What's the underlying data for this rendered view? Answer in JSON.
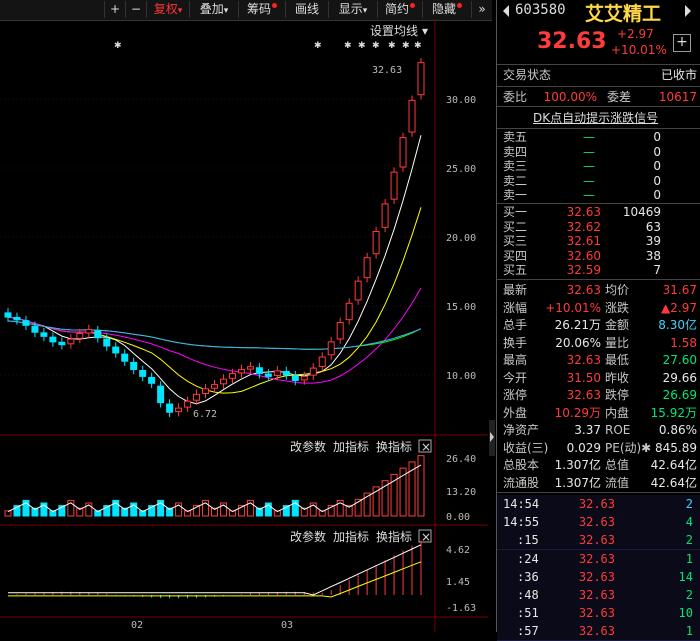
{
  "toolbar": {
    "plus": "+",
    "minus": "−",
    "fuquan": "复权",
    "diejia": "叠加",
    "chouma": "筹码",
    "huaxian": "画线",
    "xianshi": "显示",
    "jianyue": "简约",
    "yincang": "隐藏",
    "more": "»",
    "dropdown": "▾"
  },
  "chart": {
    "settings_label": "设置均线",
    "price_axis": [
      "30.00",
      "25.00",
      "20.00",
      "15.00",
      "10.00"
    ],
    "high_label": "32.63",
    "low_label": "6.72",
    "vol_axis": [
      "26.40",
      "13.20",
      "0.00"
    ],
    "macd_axis": [
      "4.62",
      "1.45",
      "-1.63"
    ],
    "date_labels": [
      "02",
      "03"
    ],
    "tab_params": "改参数",
    "tab_add": "加指标",
    "tab_switch": "换指标",
    "close_x": "×",
    "star_marks": "✱"
  },
  "stock": {
    "code": "603580",
    "name": "艾艾精工",
    "price": "32.63",
    "change": "+2.97",
    "change_pct": "+10.01%",
    "add_btn": "+"
  },
  "trade_status": {
    "label": "交易状态",
    "value": "已收市"
  },
  "weibi": {
    "label": "委比",
    "value": "100.00%",
    "label2": "委差",
    "value2": "10617"
  },
  "dk_signal": "DK点自动提示涨跌信号",
  "asks": [
    {
      "label": "卖五",
      "price": "—",
      "vol": "0"
    },
    {
      "label": "卖四",
      "price": "—",
      "vol": "0"
    },
    {
      "label": "卖三",
      "price": "—",
      "vol": "0"
    },
    {
      "label": "卖二",
      "price": "—",
      "vol": "0"
    },
    {
      "label": "卖一",
      "price": "—",
      "vol": "0"
    }
  ],
  "bids": [
    {
      "label": "买一",
      "price": "32.63",
      "vol": "10469"
    },
    {
      "label": "买二",
      "price": "32.62",
      "vol": "63"
    },
    {
      "label": "买三",
      "price": "32.61",
      "vol": "39"
    },
    {
      "label": "买四",
      "price": "32.60",
      "vol": "38"
    },
    {
      "label": "买五",
      "price": "32.59",
      "vol": "7"
    }
  ],
  "stats": [
    {
      "l1": "最新",
      "v1": "32.63",
      "c1": "red",
      "l2": "均价",
      "v2": "31.67",
      "c2": "red"
    },
    {
      "l1": "涨幅",
      "v1": "+10.01%",
      "c1": "red",
      "l2": "涨跌",
      "v2": "▲2.97",
      "c2": "red"
    },
    {
      "l1": "总手",
      "v1": "26.21万",
      "c1": "white",
      "l2": "金额",
      "v2": "8.30亿",
      "c2": "cyan"
    },
    {
      "l1": "换手",
      "v1": "20.06%",
      "c1": "white",
      "l2": "量比",
      "v2": "1.58",
      "c2": "red"
    },
    {
      "l1": "最高",
      "v1": "32.63",
      "c1": "red",
      "l2": "最低",
      "v2": "27.60",
      "c2": "green"
    },
    {
      "l1": "今开",
      "v1": "31.50",
      "c1": "red",
      "l2": "昨收",
      "v2": "29.66",
      "c2": "white"
    },
    {
      "l1": "涨停",
      "v1": "32.63",
      "c1": "red",
      "l2": "跌停",
      "v2": "26.69",
      "c2": "green"
    },
    {
      "l1": "外盘",
      "v1": "10.29万",
      "c1": "red",
      "l2": "内盘",
      "v2": "15.92万",
      "c2": "green"
    },
    {
      "l1": "净资产",
      "v1": "3.37",
      "c1": "white",
      "l2": "ROE",
      "v2": "0.86%",
      "c2": "white"
    },
    {
      "l1": "收益(三)",
      "v1": "0.029",
      "c1": "white",
      "l2": "PE(动)✱",
      "v2": "845.89",
      "c2": "white"
    },
    {
      "l1": "总股本",
      "v1": "1.307亿",
      "c1": "white",
      "l2": "总值",
      "v2": "42.64亿",
      "c2": "white"
    },
    {
      "l1": "流通股",
      "v1": "1.307亿",
      "c1": "white",
      "l2": "流值",
      "v2": "42.64亿",
      "c2": "white"
    }
  ],
  "ticks": [
    {
      "time": "14:54",
      "price": "32.63",
      "vol": "2",
      "vc": "cyan"
    },
    {
      "time": "14:55",
      "price": "32.63",
      "vol": "4",
      "vc": "green"
    },
    {
      "time": ":15",
      "price": "32.63",
      "vol": "2",
      "vc": "green"
    },
    {
      "time": ":24",
      "price": "32.63",
      "vol": "1",
      "vc": "green"
    },
    {
      "time": ":36",
      "price": "32.63",
      "vol": "14",
      "vc": "green"
    },
    {
      "time": ":48",
      "price": "32.63",
      "vol": "2",
      "vc": "green"
    },
    {
      "time": ":51",
      "price": "32.63",
      "vol": "10",
      "vc": "green"
    },
    {
      "time": ":57",
      "price": "32.63",
      "vol": "1",
      "vc": "green"
    }
  ],
  "colors": {
    "up": "#ff3b3b",
    "down": "#00e5ff",
    "ma5": "#ffffff",
    "ma10": "#ffff00",
    "ma20": "#ff00ff",
    "ma60": "#00ff00",
    "ma120": "#4aa8ff"
  }
}
